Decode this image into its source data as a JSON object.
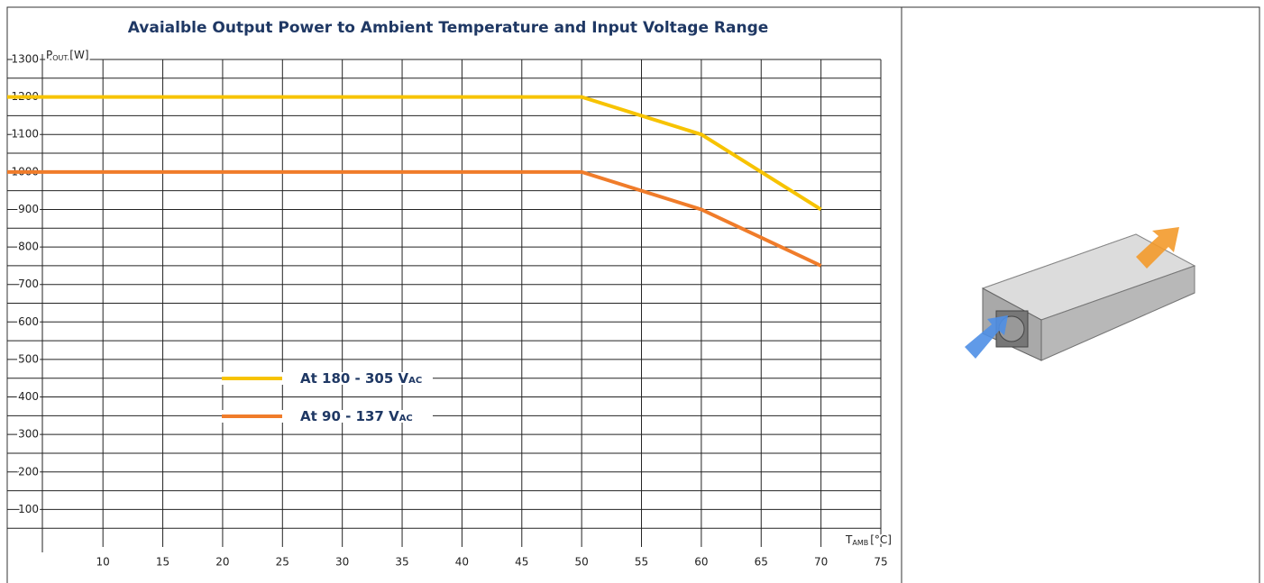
{
  "chart_data": {
    "type": "line",
    "title": "Avaialble Output Power to Ambient Temperature and Input Voltage Range",
    "y_label": "P",
    "y_label_sub": "OUT",
    "y_label_unit": "[W]",
    "x_label": "T",
    "x_label_sub": "AMB",
    "x_label_unit": "[°C]",
    "x": [
      2,
      50,
      60,
      70
    ],
    "series": [
      {
        "name": "At 180 - 305 V",
        "name_sub": "AC",
        "color": "#f7c300",
        "values": [
          1200,
          1200,
          1100,
          900
        ]
      },
      {
        "name": "At 90 - 137 V",
        "name_sub": "AC",
        "color": "#f07c2a",
        "values": [
          1000,
          1000,
          900,
          750
        ]
      }
    ],
    "xlim": [
      2,
      75
    ],
    "xticks": [
      10,
      15,
      20,
      25,
      30,
      35,
      40,
      45,
      50,
      55,
      60,
      65,
      70,
      75
    ],
    "ylim": [
      0,
      1300
    ],
    "yticks": [
      100,
      200,
      300,
      400,
      500,
      600,
      700,
      800,
      900,
      1000,
      1100,
      1200,
      1300
    ],
    "grid": true
  }
}
